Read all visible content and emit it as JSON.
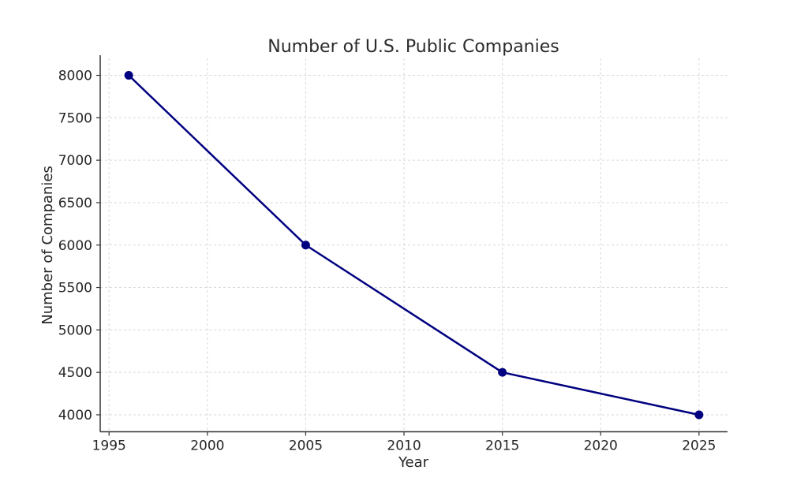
{
  "chart_data": {
    "type": "line",
    "title": "Number of U.S. Public Companies",
    "xlabel": "Year",
    "ylabel": "Number of Companies",
    "x": [
      1996,
      2005,
      2015,
      2025
    ],
    "y": [
      8000,
      6000,
      4500,
      4000
    ],
    "series": [
      {
        "name": "Number of U.S. Public Companies",
        "x": [
          1996,
          2005,
          2015,
          2025
        ],
        "values": [
          8000,
          6000,
          4500,
          4000
        ]
      }
    ],
    "xticks": [
      1995,
      2000,
      2005,
      2010,
      2015,
      2020,
      2025
    ],
    "yticks": [
      4000,
      4500,
      5000,
      5500,
      6000,
      6500,
      7000,
      7500,
      8000
    ],
    "xlim": [
      1994.55,
      2026.45
    ],
    "ylim": [
      3800,
      8200
    ],
    "line_color": "#000080",
    "marker": "circle",
    "marker_color": "#000080",
    "grid": "dashed",
    "grid_color": "#d9d9d9",
    "legend_position": "none",
    "background_color": "#ffffff"
  }
}
